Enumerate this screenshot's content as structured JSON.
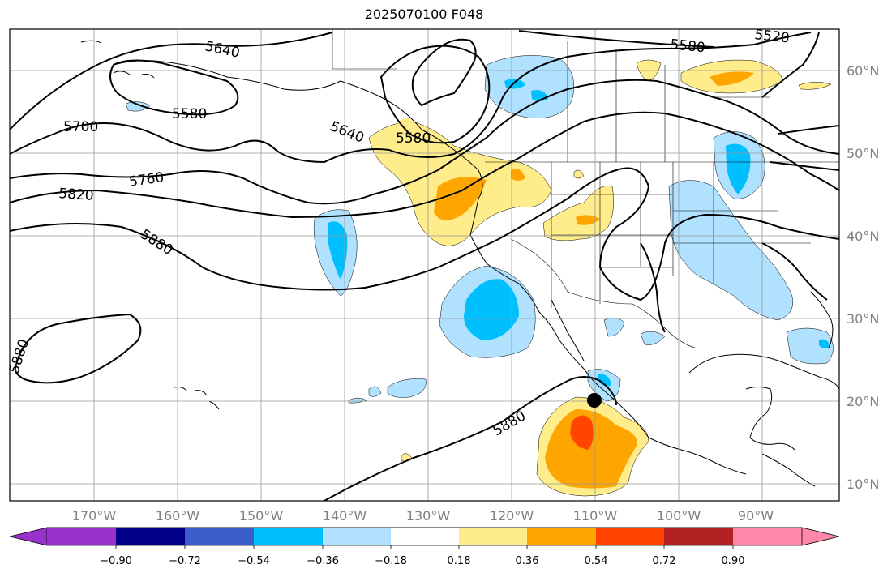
{
  "title": "2025070100 F048",
  "map": {
    "lon_labels": [
      "170°W",
      "160°W",
      "150°W",
      "140°W",
      "130°W",
      "120°W",
      "110°W",
      "100°W",
      "90°W"
    ],
    "lat_labels": [
      "60°N",
      "50°N",
      "40°N",
      "30°N",
      "20°N",
      "10°N"
    ],
    "contour_labels": [
      "5640",
      "5580",
      "5700",
      "5640",
      "5580",
      "5760",
      "5820",
      "5880",
      "5880",
      "5880",
      "5580",
      "5520"
    ],
    "marker": "storm-center"
  },
  "colorbar": {
    "ticks": [
      "−0.90",
      "−0.72",
      "−0.54",
      "−0.36",
      "−0.18",
      "0.18",
      "0.36",
      "0.54",
      "0.72",
      "0.90"
    ],
    "colors": [
      "#9932cc",
      "#00008b",
      "#3a5fcd",
      "#00bfff",
      "#b0e2ff",
      "#ffffff",
      "#ffec8b",
      "#ffa500",
      "#ff4500",
      "#b22222",
      "#ff88aa"
    ],
    "extend_low_color": "#9932cc",
    "extend_high_color": "#ff88aa"
  },
  "colors": {
    "light_blue": "#b0e2ff",
    "blue": "#00bfff",
    "light_yellow": "#ffec8b",
    "orange": "#ffa500",
    "red_orange": "#ff4500"
  }
}
